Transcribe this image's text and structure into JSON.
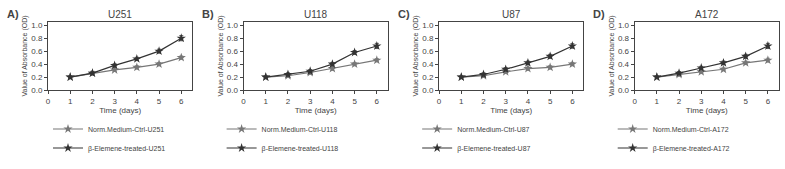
{
  "chart_data": [
    {
      "type": "line",
      "title": "U251",
      "annotations": [
        "A)"
      ],
      "xlabel": "Time (days)",
      "ylabel": "Value of Absorbance (OD)",
      "x": [
        1,
        2,
        3,
        4,
        5,
        6
      ],
      "series": [
        {
          "name": "Norm.Medium-Ctrl-U251",
          "color": "#777777",
          "marker": "star",
          "line_style": "solid",
          "values": [
            0.2,
            0.26,
            0.31,
            0.35,
            0.4,
            0.5
          ],
          "errors": [
            0.015,
            0.03,
            0.025,
            0.025,
            0.025,
            0.025
          ]
        },
        {
          "name": "β-Elemene-treated-U251",
          "color": "#333333",
          "marker": "star",
          "line_style": "solid",
          "values": [
            0.2,
            0.26,
            0.38,
            0.48,
            0.6,
            0.8
          ],
          "errors": [
            0.015,
            0.025,
            0.025,
            0.025,
            0.03,
            0.04
          ]
        }
      ],
      "xlim": [
        0,
        6.5
      ],
      "xticks": [
        0,
        1,
        2,
        3,
        4,
        5,
        6
      ],
      "ylim": [
        0.0,
        1.05
      ],
      "yticks": [
        {
          "value": 0.0,
          "label": "0.0"
        },
        0.2,
        0.4,
        0.6,
        0.8,
        {
          "value": 1.0,
          "label": "1.0"
        }
      ],
      "grid": false,
      "legend": "below"
    },
    {
      "type": "line",
      "title": "U118",
      "annotations": [
        "B)"
      ],
      "xlabel": "Time (days)",
      "ylabel": "Value of Absorbance (OD)",
      "x": [
        1,
        2,
        3,
        4,
        5,
        6
      ],
      "series": [
        {
          "name": "Norm.Medium-Ctrl-U118",
          "color": "#777777",
          "marker": "star",
          "line_style": "solid",
          "values": [
            0.2,
            0.22,
            0.27,
            0.33,
            0.4,
            0.46
          ],
          "errors": [
            0.015,
            0.025,
            0.025,
            0.025,
            0.025,
            0.025
          ]
        },
        {
          "name": "β-Elemene-treated-U118",
          "color": "#333333",
          "marker": "star",
          "line_style": "solid",
          "values": [
            0.2,
            0.24,
            0.29,
            0.4,
            0.58,
            0.68
          ],
          "errors": [
            0.015,
            0.025,
            0.025,
            0.025,
            0.03,
            0.04
          ]
        }
      ],
      "xlim": [
        0,
        6.5
      ],
      "xticks": [
        0,
        1,
        2,
        3,
        4,
        5,
        6
      ],
      "ylim": [
        0.0,
        1.05
      ],
      "yticks": [
        {
          "value": 0.0,
          "label": "0.0"
        },
        0.2,
        0.4,
        0.6,
        0.8,
        {
          "value": 1.0,
          "label": "1.0"
        }
      ],
      "grid": false,
      "legend": "below"
    },
    {
      "type": "line",
      "title": "U87",
      "annotations": [
        "C)"
      ],
      "xlabel": "Time (days)",
      "ylabel": "Value of Absorbance (OD)",
      "x": [
        1,
        2,
        3,
        4,
        5,
        6
      ],
      "series": [
        {
          "name": "Norm.Medium-Ctrl-U87",
          "color": "#777777",
          "marker": "star",
          "line_style": "solid",
          "values": [
            0.2,
            0.22,
            0.28,
            0.33,
            0.35,
            0.4
          ],
          "errors": [
            0.015,
            0.025,
            0.025,
            0.025,
            0.025,
            0.025
          ]
        },
        {
          "name": "β-Elemene-treated-U87",
          "color": "#333333",
          "marker": "star",
          "line_style": "solid",
          "values": [
            0.2,
            0.24,
            0.32,
            0.42,
            0.52,
            0.68
          ],
          "errors": [
            0.015,
            0.025,
            0.025,
            0.025,
            0.03,
            0.035
          ]
        }
      ],
      "xlim": [
        0,
        6.5
      ],
      "xticks": [
        0,
        1,
        2,
        3,
        4,
        5,
        6
      ],
      "ylim": [
        0.0,
        1.05
      ],
      "yticks": [
        {
          "value": 0.0,
          "label": "0.0"
        },
        0.2,
        0.4,
        0.6,
        0.8,
        {
          "value": 1.0,
          "label": "1.0"
        }
      ],
      "grid": false,
      "legend": "below"
    },
    {
      "type": "line",
      "title": "A172",
      "annotations": [
        "D)"
      ],
      "xlabel": "Time (days)",
      "ylabel": "Value of Absorbance (OD)",
      "x": [
        1,
        2,
        3,
        4,
        5,
        6
      ],
      "series": [
        {
          "name": "Norm.Medium-Ctrl-A172",
          "color": "#777777",
          "marker": "star",
          "line_style": "solid",
          "values": [
            0.2,
            0.24,
            0.28,
            0.32,
            0.42,
            0.46
          ],
          "errors": [
            0.015,
            0.025,
            0.02,
            0.02,
            0.025,
            0.03
          ]
        },
        {
          "name": "β-Elemene-treated-A172",
          "color": "#333333",
          "marker": "star",
          "line_style": "solid",
          "values": [
            0.2,
            0.26,
            0.34,
            0.42,
            0.52,
            0.68
          ],
          "errors": [
            0.015,
            0.025,
            0.025,
            0.025,
            0.03,
            0.04
          ]
        }
      ],
      "xlim": [
        0,
        6.5
      ],
      "xticks": [
        0,
        1,
        2,
        3,
        4,
        5,
        6
      ],
      "ylim": [
        0.0,
        1.05
      ],
      "yticks": [
        {
          "value": 0.0,
          "label": "0.0"
        },
        0.2,
        0.4,
        0.6,
        0.8,
        {
          "value": 1.0,
          "label": "1.0"
        }
      ],
      "grid": false,
      "legend": "below"
    }
  ]
}
